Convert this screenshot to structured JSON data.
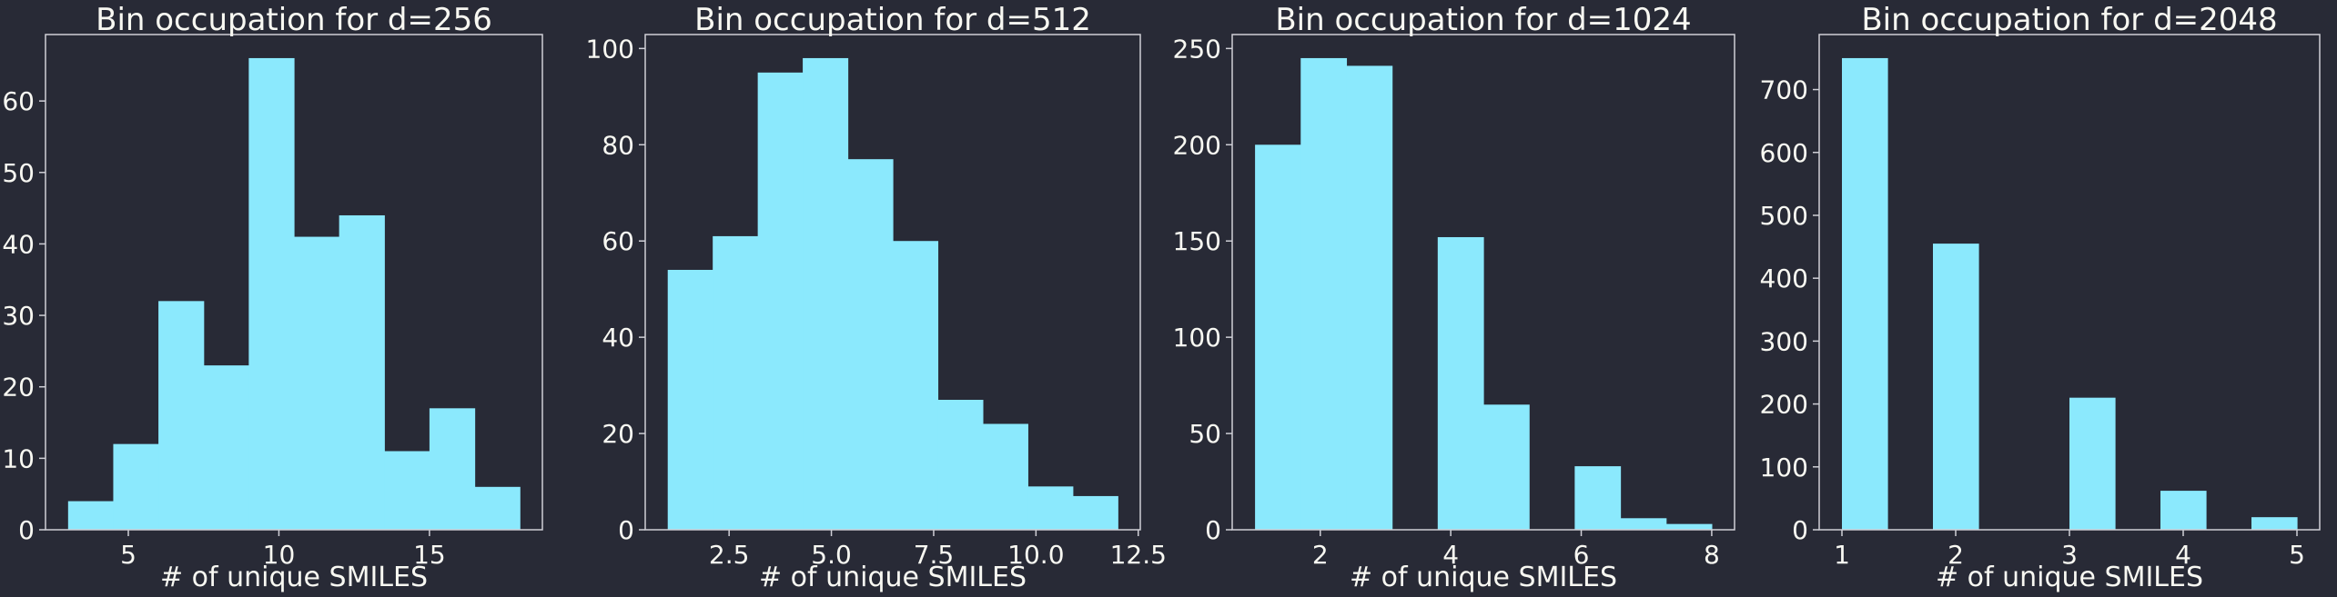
{
  "chart_data": [
    {
      "type": "bar",
      "title": "Bin occupation for d=256",
      "xlabel": "# of unique SMILES",
      "ylabel": "",
      "xlim": [
        2.25,
        18.75
      ],
      "ylim": [
        0,
        69.3
      ],
      "xticks": [
        5,
        10,
        15
      ],
      "xtick_labels": [
        "5",
        "10",
        "15"
      ],
      "yticks": [
        0,
        10,
        20,
        30,
        40,
        50,
        60
      ],
      "ytick_labels": [
        "0",
        "10",
        "20",
        "30",
        "40",
        "50",
        "60"
      ],
      "bin_edges": [
        3.0,
        4.5,
        6.0,
        7.5,
        9.0,
        10.5,
        12.0,
        13.5,
        15.0,
        16.5,
        18.0
      ],
      "values": [
        4,
        12,
        32,
        23,
        66,
        41,
        44,
        11,
        17,
        6
      ],
      "color": "#8be9fd",
      "grid": false
    },
    {
      "type": "bar",
      "title": "Bin occupation for d=512",
      "xlabel": "# of unique SMILES",
      "ylabel": "",
      "xlim": [
        0.45,
        12.55
      ],
      "ylim": [
        0,
        102.9
      ],
      "xticks": [
        2.5,
        5.0,
        7.5,
        10.0,
        12.5
      ],
      "xtick_labels": [
        "2.5",
        "5.0",
        "7.5",
        "10.0",
        "12.5"
      ],
      "yticks": [
        0,
        20,
        40,
        60,
        80,
        100
      ],
      "ytick_labels": [
        "0",
        "20",
        "40",
        "60",
        "80",
        "100"
      ],
      "bin_edges": [
        1.0,
        2.1,
        3.2,
        4.3,
        5.4,
        6.5,
        7.6,
        8.7,
        9.8,
        10.9,
        12.0
      ],
      "values": [
        54,
        61,
        95,
        98,
        77,
        60,
        27,
        22,
        9,
        7
      ],
      "color": "#8be9fd",
      "grid": false
    },
    {
      "type": "bar",
      "title": "Bin occupation for d=1024",
      "xlabel": "# of unique SMILES",
      "ylabel": "",
      "xlim": [
        0.65,
        8.35
      ],
      "ylim": [
        0,
        257.25
      ],
      "xticks": [
        2,
        4,
        6,
        8
      ],
      "xtick_labels": [
        "2",
        "4",
        "6",
        "8"
      ],
      "yticks": [
        0,
        50,
        100,
        150,
        200,
        250
      ],
      "ytick_labels": [
        "0",
        "50",
        "100",
        "150",
        "200",
        "250"
      ],
      "bin_edges": [
        1.0,
        1.7,
        2.4,
        3.1,
        3.8,
        4.5,
        5.2,
        5.9,
        6.6,
        7.3,
        8.0
      ],
      "values": [
        200,
        245,
        241,
        0,
        152,
        65,
        0,
        33,
        6,
        3
      ],
      "color": "#8be9fd",
      "grid": false
    },
    {
      "type": "bar",
      "title": "Bin occupation for d=2048",
      "xlabel": "# of unique SMILES",
      "ylabel": "",
      "xlim": [
        0.8,
        5.2
      ],
      "ylim": [
        0,
        787.5
      ],
      "xticks": [
        1,
        2,
        3,
        4,
        5
      ],
      "xtick_labels": [
        "1",
        "2",
        "3",
        "4",
        "5"
      ],
      "yticks": [
        0,
        100,
        200,
        300,
        400,
        500,
        600,
        700
      ],
      "ytick_labels": [
        "0",
        "100",
        "200",
        "300",
        "400",
        "500",
        "600",
        "700"
      ],
      "bin_edges": [
        1.0,
        1.4,
        1.8,
        2.2,
        2.6,
        3.0,
        3.4,
        3.8,
        4.2,
        4.6,
        5.0
      ],
      "values": [
        750,
        0,
        455,
        0,
        0,
        210,
        0,
        62,
        0,
        20
      ],
      "color": "#8be9fd",
      "grid": false
    }
  ]
}
